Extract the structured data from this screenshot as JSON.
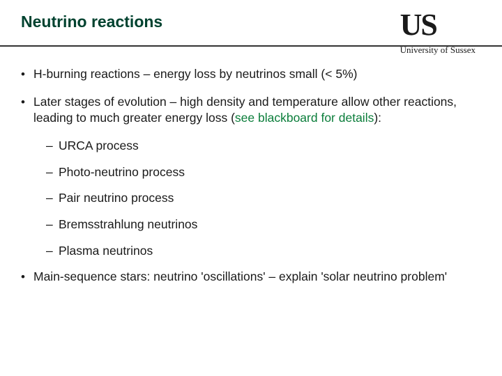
{
  "colors": {
    "title": "#00422f",
    "text": "#1a1a1a",
    "accent": "#0a7d3a",
    "rule": "#333333",
    "background": "#ffffff"
  },
  "logo": {
    "mark": "US",
    "subtitle": "University of Sussex"
  },
  "title": "Neutrino reactions",
  "bullets": {
    "b1": "H-burning reactions – energy loss by neutrinos small (< 5%)",
    "b2_pre": "Later stages of evolution – high density and temperature allow other reactions, leading to much greater energy loss (",
    "b2_green": "see blackboard for details",
    "b2_post": "):",
    "sub": {
      "s1": "URCA process",
      "s2": "Photo-neutrino process",
      "s3": "Pair neutrino process",
      "s4": "Bremsstrahlung neutrinos",
      "s5": "Plasma neutrinos"
    },
    "b3": "Main-sequence stars: neutrino 'oscillations' – explain 'solar neutrino problem'"
  }
}
